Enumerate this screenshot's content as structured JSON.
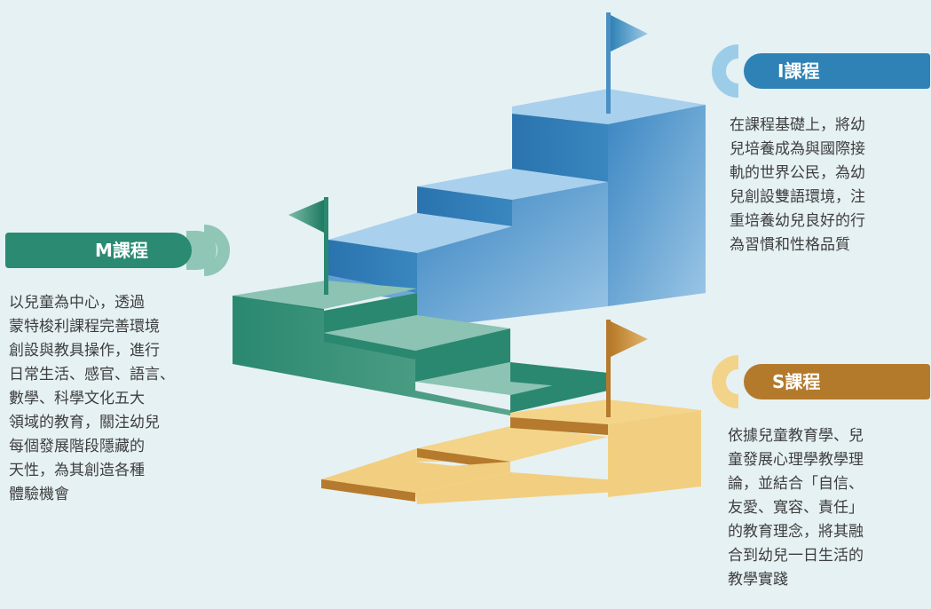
{
  "m_course": {
    "title": "M課程",
    "description": "以兒童為中心，透過\n蒙特梭利課程完善環境\n創設與教具操作，進行\n日常生活、感官、語言、\n數學、科學文化五大\n領域的教育，關注幼兒\n每個發展階段隱藏的\n天性，為其創造各種\n體驗機會",
    "color": "#2a8a72"
  },
  "i_course": {
    "title": "I課程",
    "description": "在課程基礎上，將幼\n兒培養成為與國際接\n軌的世界公民，為幼\n兒創設雙語環境，注\n重培養幼兒良好的行\n為習慣和性格品質",
    "color": "#2f82b6"
  },
  "s_course": {
    "title": "S課程",
    "description": "依據兒童教育學、兒\n童發展心理學教學理\n論，並結合「自信、\n友愛、寬容、責任」\n的教育理念，將其融\n合到幼兒一日生活的\n教學實踐",
    "color": "#b47a2c"
  },
  "icons": [
    "flag-icon",
    "staircase-icon"
  ]
}
